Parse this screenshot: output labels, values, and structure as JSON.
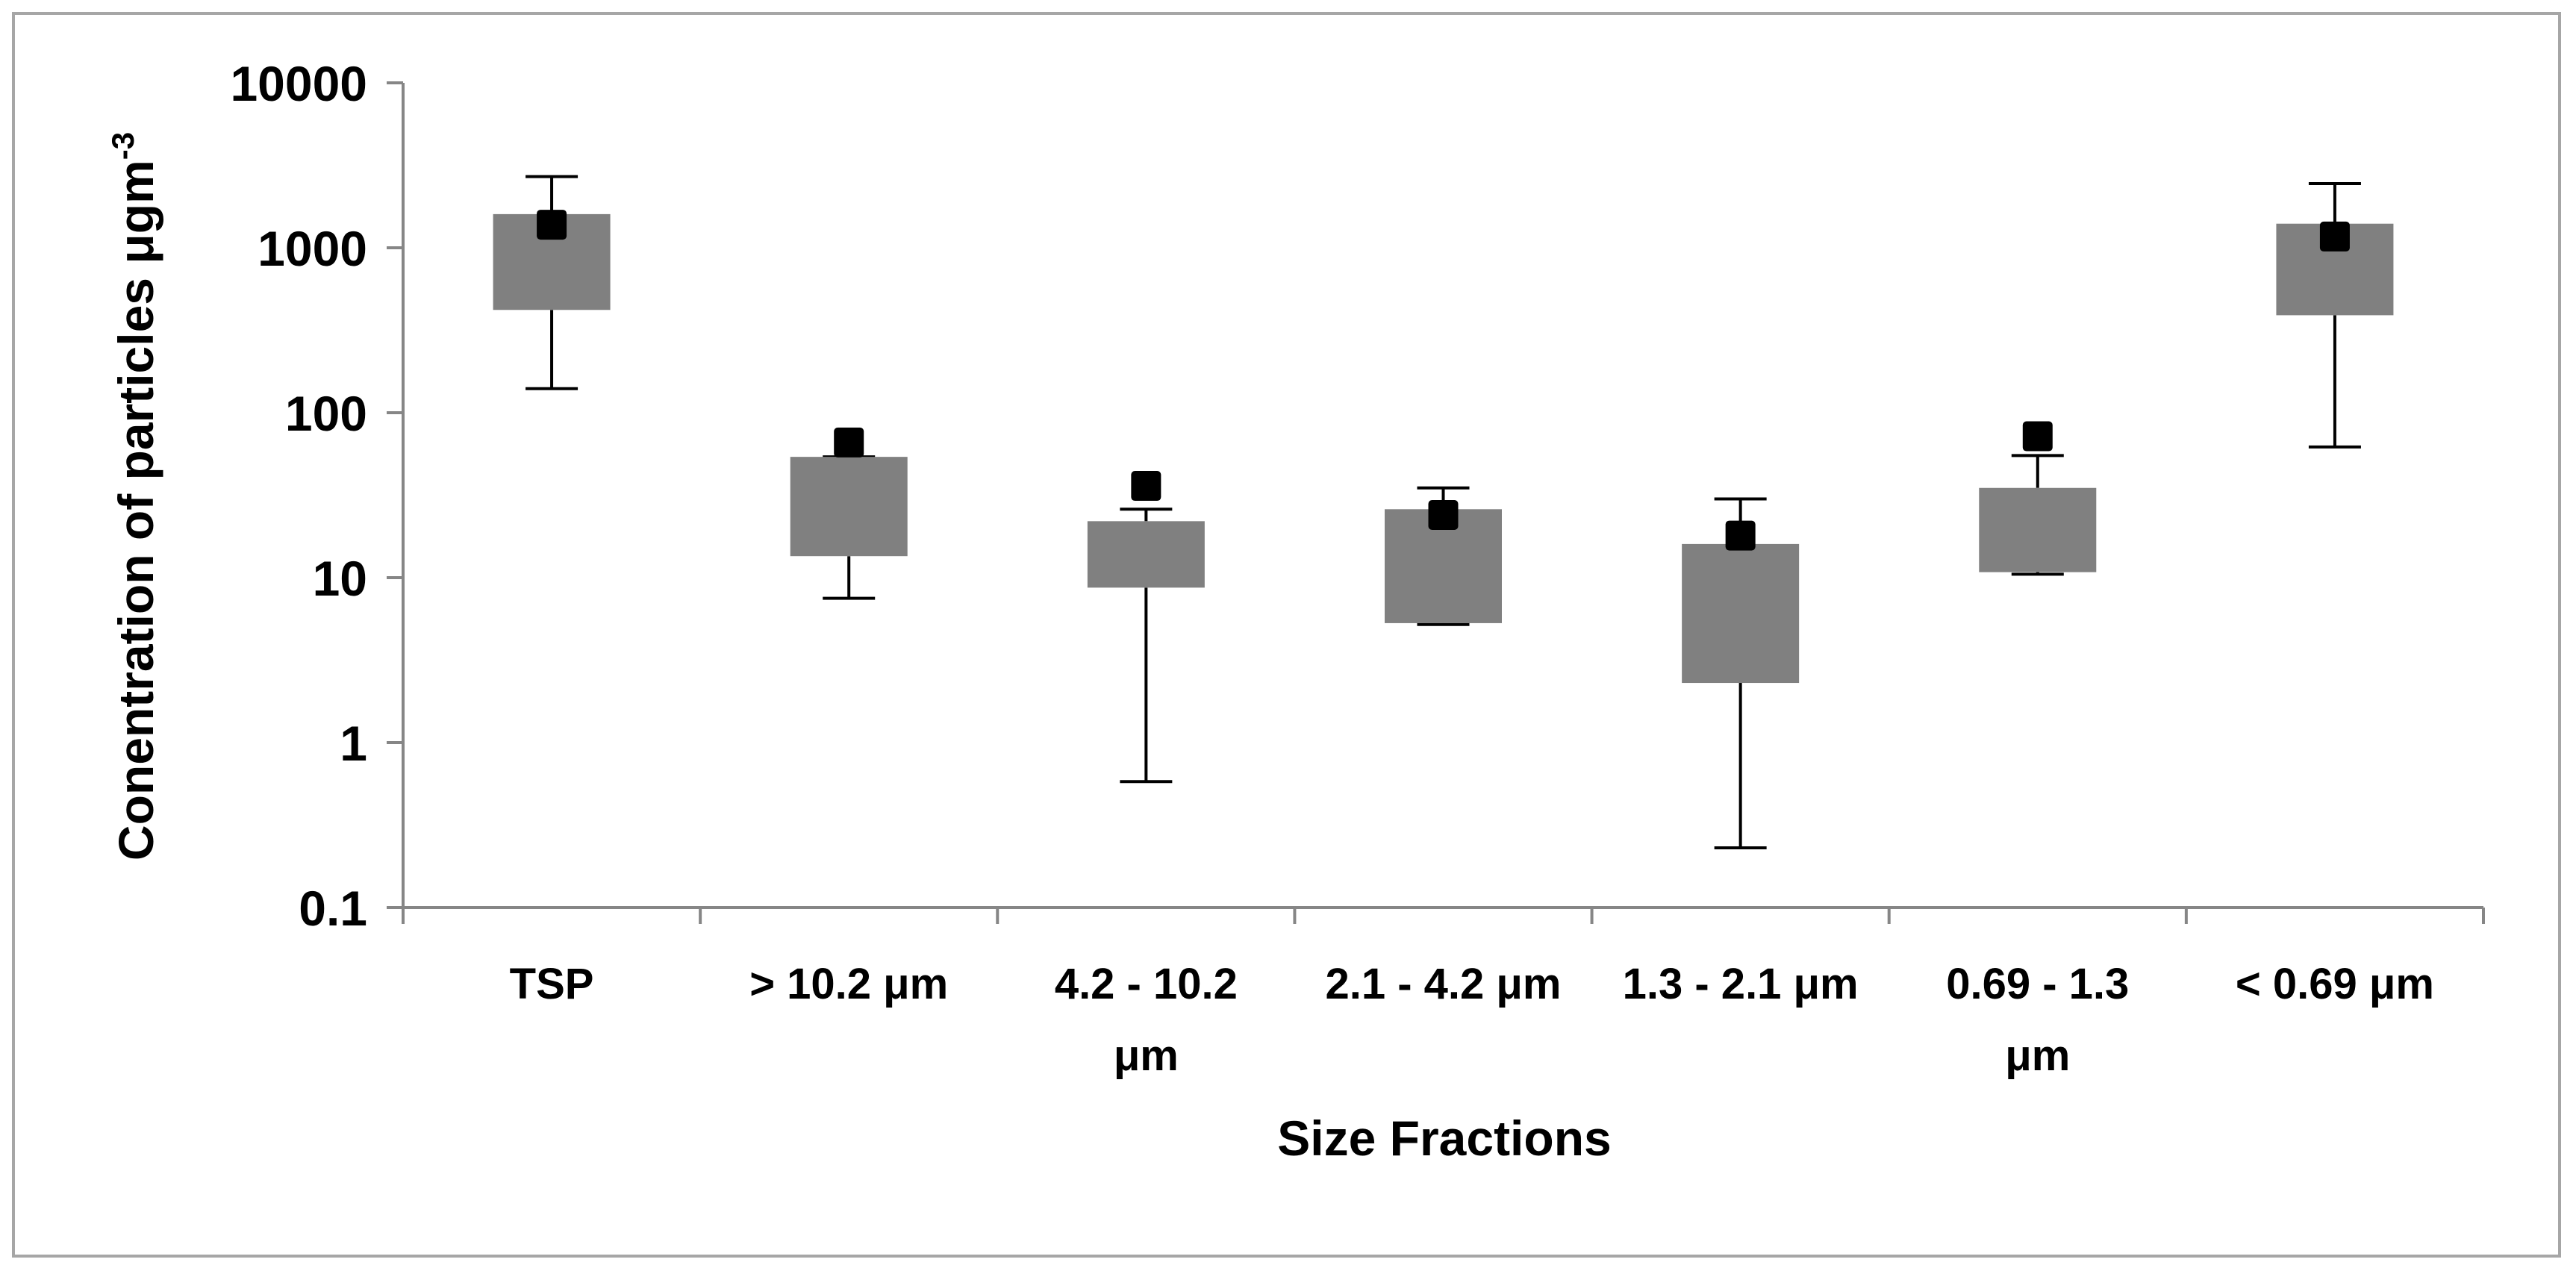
{
  "chart_data": {
    "type": "box",
    "title": "",
    "xlabel": "Size Fractions",
    "ylabel": "Conentration of particles  μgm",
    "ylabel_superscript": "-3",
    "yscale": "log",
    "ylim": [
      0.1,
      10000
    ],
    "yticks": [
      "0.1",
      "1",
      "10",
      "100",
      "1000",
      "10000"
    ],
    "categories": [
      [
        "TSP"
      ],
      [
        "> 10.2 μm"
      ],
      [
        "4.2 - 10.2",
        "μm"
      ],
      [
        "2.1 - 4.2 μm"
      ],
      [
        "1.3 - 2.1 μm"
      ],
      [
        "0.69 - 1.3",
        "μm"
      ],
      [
        "< 0.69 μm"
      ]
    ],
    "boxes": [
      {
        "whisker_low": 140,
        "q1": 420,
        "q3": 1600,
        "whisker_high": 2700,
        "marker": 1380
      },
      {
        "whisker_low": 7.5,
        "q1": 13.5,
        "q3": 54,
        "whisker_high": 54,
        "marker": 66
      },
      {
        "whisker_low": 0.58,
        "q1": 8.7,
        "q3": 22,
        "whisker_high": 26,
        "marker": 36
      },
      {
        "whisker_low": 5.2,
        "q1": 5.3,
        "q3": 26,
        "whisker_high": 35,
        "marker": 24
      },
      {
        "whisker_low": 0.23,
        "q1": 2.3,
        "q3": 16,
        "whisker_high": 30,
        "marker": 18
      },
      {
        "whisker_low": 10.5,
        "q1": 10.8,
        "q3": 35,
        "whisker_high": 55,
        "marker": 72
      },
      {
        "whisker_low": 62,
        "q1": 390,
        "q3": 1400,
        "whisker_high": 2450,
        "marker": 1170
      }
    ],
    "colors": {
      "box": "#808080",
      "marker": "#000000",
      "axis": "#868686",
      "whisker": "#000000"
    }
  }
}
